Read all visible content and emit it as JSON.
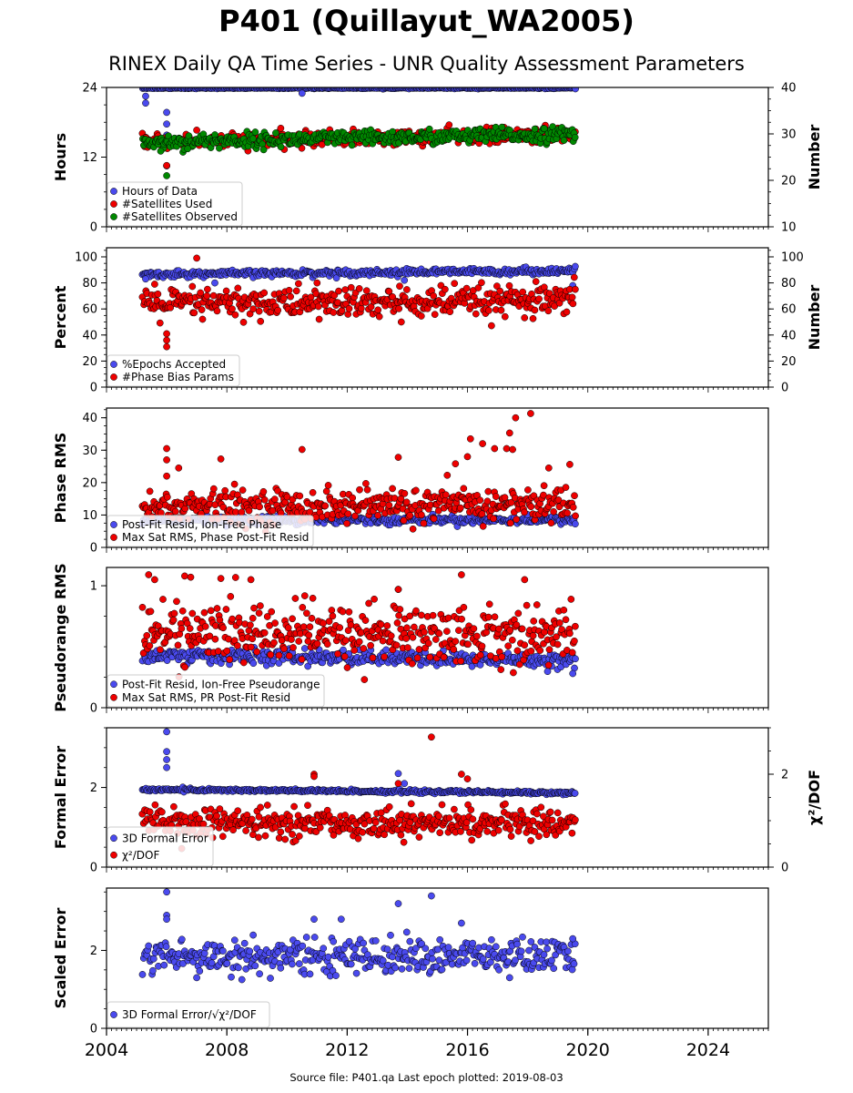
{
  "title": "P401 (Quillayut_WA2005)",
  "subtitle": "RINEX Daily QA Time Series - UNR Quality Assessment Parameters",
  "footer": "Source file: P401.qa Last epoch plotted: 2019-08-03",
  "colors": {
    "blue": "#4a4aee",
    "red": "#ee0000",
    "green": "#008800"
  },
  "chart_data": [
    {
      "type": "scatter",
      "ylabel": "Hours",
      "ylabel_right": "Number",
      "ylim": [
        0,
        24
      ],
      "ylim_right": [
        10,
        40
      ],
      "yticks": [
        0,
        12,
        24
      ],
      "yticks_right": [
        10,
        20,
        30,
        40
      ],
      "xlim": [
        2004,
        2026
      ],
      "legend": [
        "Hours of Data",
        "#Satellites Used",
        "#Satellites Observed"
      ],
      "series": [
        {
          "name": "Hours of Data",
          "color": "blue",
          "axis": "left",
          "t0": 2005.2,
          "t1": 2019.58,
          "base": 23.9,
          "noise": 0.05,
          "trend": 0,
          "outliers": [
            [
              2005.3,
              21.3
            ],
            [
              2005.3,
              22.5
            ],
            [
              2006.0,
              17.7
            ],
            [
              2006.0,
              19.7
            ],
            [
              2006.0,
              15.8
            ],
            [
              2006.0,
              10.5
            ],
            [
              2010.5,
              23.0
            ]
          ]
        },
        {
          "name": "#Satellites Used",
          "color": "red",
          "axis": "right",
          "t0": 2005.2,
          "t1": 2019.58,
          "base": 28.2,
          "noise": 0.8,
          "trend": 0.12,
          "outliers": [
            [
              2005.3,
              29.2
            ],
            [
              2006.0,
              23.2
            ],
            [
              2007.0,
              30.8
            ],
            [
              2010.6,
              30.3
            ]
          ]
        },
        {
          "name": "#Satellites Observed",
          "color": "green",
          "axis": "right",
          "t0": 2005.2,
          "t1": 2019.58,
          "base": 28.2,
          "noise": 0.8,
          "trend": 0.12,
          "outliers": [
            [
              2006.0,
              21.0
            ],
            [
              2005.8,
              26.3
            ],
            [
              2006.7,
              26.8
            ]
          ]
        }
      ]
    },
    {
      "type": "scatter",
      "ylabel": "Percent",
      "ylabel_right": "Number",
      "ylim": [
        0,
        107
      ],
      "ylim_right": [
        0,
        107
      ],
      "yticks": [
        0,
        20,
        40,
        60,
        80,
        100
      ],
      "yticks_right": [
        0,
        20,
        40,
        60,
        80,
        100
      ],
      "xlim": [
        2004,
        2026
      ],
      "legend": [
        "%Epochs Accepted",
        "#Phase Bias Params"
      ],
      "series": [
        {
          "name": "%Epochs Accepted",
          "color": "blue",
          "axis": "left",
          "t0": 2005.2,
          "t1": 2019.58,
          "base": 86.5,
          "noise": 1.2,
          "trend": 0.2,
          "outliers": [
            [
              2005.3,
              83
            ],
            [
              2007.6,
              80
            ],
            [
              2013.9,
              82
            ],
            [
              2019.5,
              78
            ]
          ]
        },
        {
          "name": "#Phase Bias Params",
          "color": "red",
          "axis": "right",
          "t0": 2005.2,
          "t1": 2019.58,
          "base": 64,
          "noise": 6,
          "trend": 0.1,
          "outliers": [
            [
              2006.0,
              31
            ],
            [
              2006.0,
              36
            ],
            [
              2006.0,
              41
            ],
            [
              2007.0,
              99
            ],
            [
              2005.6,
              79
            ],
            [
              2013.8,
              50
            ],
            [
              2011.0,
              80
            ]
          ]
        }
      ]
    },
    {
      "type": "scatter",
      "ylabel": "Phase RMS",
      "ylim": [
        0,
        43
      ],
      "yticks": [
        0,
        10,
        20,
        30,
        40
      ],
      "xlim": [
        2004,
        2026
      ],
      "legend": [
        "Post-Fit Resid, Ion-Free Phase",
        "Max Sat RMS, Phase Post-Fit Resid"
      ],
      "series": [
        {
          "name": "Post-Fit Resid, Ion-Free Phase",
          "color": "blue",
          "axis": "left",
          "t0": 2005.2,
          "t1": 2019.58,
          "base": 8.5,
          "noise": 0.6,
          "trend": 0,
          "outliers": []
        },
        {
          "name": "Max Sat RMS, Phase Post-Fit Resid",
          "color": "red",
          "axis": "left",
          "t0": 2005.2,
          "t1": 2019.58,
          "base": 12.5,
          "noise": 2.6,
          "trend": 0.05,
          "outliers": [
            [
              2006.0,
              30.5
            ],
            [
              2006.0,
              27
            ],
            [
              2006.0,
              22
            ],
            [
              2006.4,
              24.5
            ],
            [
              2007.8,
              27.3
            ],
            [
              2010.5,
              30.2
            ],
            [
              2013.7,
              27.8
            ],
            [
              2015.6,
              25.8
            ],
            [
              2016.0,
              28
            ],
            [
              2016.1,
              33.5
            ],
            [
              2016.5,
              32
            ],
            [
              2016.9,
              30.5
            ],
            [
              2017.3,
              30.5
            ],
            [
              2017.4,
              35.3
            ],
            [
              2017.5,
              30.2
            ],
            [
              2017.6,
              40
            ],
            [
              2018.1,
              41.3
            ],
            [
              2019.4,
              25.6
            ],
            [
              2018.7,
              24.5
            ]
          ]
        }
      ]
    },
    {
      "type": "scatter",
      "ylabel": "Pseudorange RMS",
      "ylim": [
        0,
        1.15
      ],
      "yticks": [
        0,
        1
      ],
      "xlim": [
        2004,
        2026
      ],
      "legend": [
        "Post-Fit Resid, Ion-Free Pseudorange",
        "Max Sat RMS, PR Post-Fit Resid"
      ],
      "series": [
        {
          "name": "Post-Fit Resid, Ion-Free Pseudorange",
          "color": "blue",
          "axis": "left",
          "t0": 2005.2,
          "t1": 2019.58,
          "base": 0.43,
          "noise": 0.03,
          "trend": -0.003,
          "outliers": [
            [
              2013.7,
              0.97
            ],
            [
              2019.5,
              0.28
            ]
          ]
        },
        {
          "name": "Max Sat RMS, PR Post-Fit Resid",
          "color": "red",
          "axis": "left",
          "t0": 2005.2,
          "t1": 2019.58,
          "base": 0.62,
          "noise": 0.12,
          "trend": -0.002,
          "outliers": [
            [
              2005.4,
              1.09
            ],
            [
              2005.6,
              1.05
            ],
            [
              2006.6,
              1.08
            ],
            [
              2006.8,
              1.07
            ],
            [
              2007.8,
              1.06
            ],
            [
              2008.8,
              1.05
            ],
            [
              2013.7,
              0.97
            ],
            [
              2015.8,
              1.09
            ],
            [
              2017.9,
              1.05
            ],
            [
              2012.9,
              0.89
            ]
          ]
        }
      ]
    },
    {
      "type": "scatter",
      "ylabel": "Formal Error",
      "ylabel_right": "χ²/DOF",
      "ylim": [
        0,
        3.5
      ],
      "ylim_right": [
        0,
        3.0
      ],
      "yticks": [
        0,
        2
      ],
      "yticks_right": [
        0,
        2
      ],
      "xlim": [
        2004,
        2026
      ],
      "legend": [
        "3D Formal Error",
        "χ²/DOF"
      ],
      "series": [
        {
          "name": "3D Formal Error",
          "color": "blue",
          "axis": "left",
          "t0": 2005.2,
          "t1": 2019.58,
          "base": 1.95,
          "noise": 0.02,
          "trend": -0.006,
          "outliers": [
            [
              2006.0,
              3.4
            ],
            [
              2006.0,
              2.9
            ],
            [
              2006.0,
              2.7
            ],
            [
              2006.0,
              2.5
            ],
            [
              2013.7,
              2.35
            ],
            [
              2013.9,
              2.1
            ]
          ]
        },
        {
          "name": "χ²/DOF",
          "color": "red",
          "axis": "right",
          "t0": 2005.2,
          "t1": 2019.58,
          "base": 0.95,
          "noise": 0.15,
          "trend": 0.0,
          "outliers": [
            [
              2014.8,
              2.8
            ],
            [
              2010.9,
              2.0
            ],
            [
              2010.9,
              1.95
            ],
            [
              2015.8,
              2.0
            ],
            [
              2016.0,
              1.9
            ],
            [
              2013.7,
              1.8
            ],
            [
              2006.5,
              0.4
            ]
          ]
        }
      ]
    },
    {
      "type": "scatter",
      "ylabel": "Scaled Error",
      "ylim": [
        0,
        3.6
      ],
      "yticks": [
        0,
        2
      ],
      "xlim": [
        2004,
        2026
      ],
      "xticks": [
        2004,
        2008,
        2012,
        2016,
        2020,
        2024
      ],
      "legend": [
        "3D Formal Error/√χ²/DOF"
      ],
      "series": [
        {
          "name": "3D Formal Error/√χ²/DOF",
          "color": "blue",
          "axis": "left",
          "t0": 2005.2,
          "t1": 2019.58,
          "base": 1.85,
          "noise": 0.22,
          "trend": 0,
          "outliers": [
            [
              2006.0,
              3.5
            ],
            [
              2006.0,
              2.9
            ],
            [
              2006.0,
              2.8
            ],
            [
              2013.7,
              3.2
            ],
            [
              2014.8,
              3.4
            ],
            [
              2010.9,
              2.8
            ],
            [
              2011.8,
              2.8
            ],
            [
              2015.8,
              2.7
            ],
            [
              2019.5,
              2.3
            ],
            [
              2007.0,
              1.3
            ],
            [
              2008.5,
              1.25
            ],
            [
              2017.4,
              1.3
            ]
          ]
        }
      ]
    }
  ]
}
